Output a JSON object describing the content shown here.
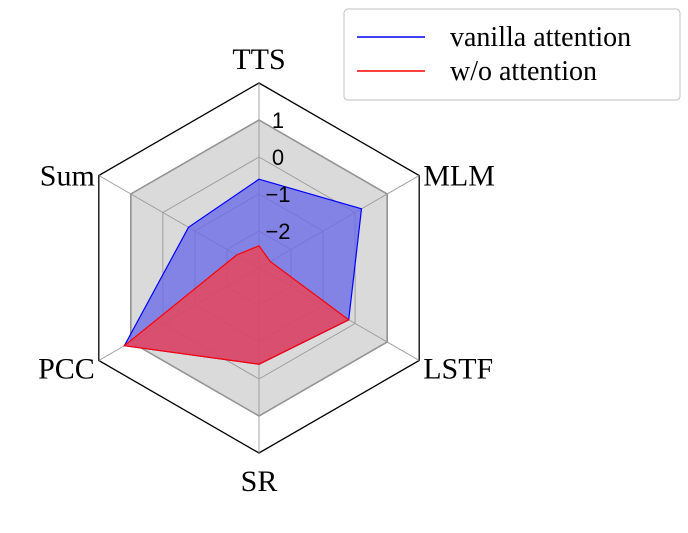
{
  "chart_data": {
    "type": "radar",
    "axes": [
      "TTS",
      "MLM",
      "LSTF",
      "SR",
      "PCC",
      "Sum"
    ],
    "rlim": [
      -3,
      2
    ],
    "ticks": [
      1,
      0,
      -1,
      -2
    ],
    "tick_labels": [
      "1",
      "0",
      "−1",
      "−2"
    ],
    "grid": true,
    "legend_position": "top-right",
    "reference": {
      "value": 1,
      "fill": "#d3d3d3",
      "stroke": "#7f7f7f"
    },
    "series": [
      {
        "name": "vanilla attention",
        "color": "#0000ff",
        "fill": "#6a6ae8",
        "values": [
          -0.6,
          0.2,
          -0.2,
          -0.4,
          1.2,
          -0.8
        ]
      },
      {
        "name": "w/o attention",
        "color": "#ff0000",
        "fill": "#f0404f",
        "values": [
          -2.4,
          -2.65,
          -0.2,
          -0.4,
          1.2,
          -2.3
        ]
      }
    ]
  }
}
